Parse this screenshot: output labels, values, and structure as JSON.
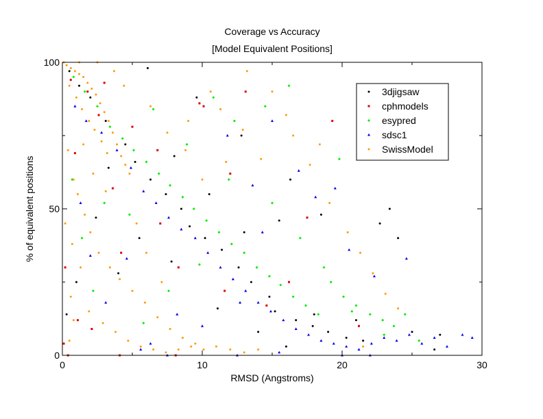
{
  "chart_data": {
    "type": "scatter",
    "title": "Coverage vs Accuracy",
    "subtitle": "[Model Equivalent Positions]",
    "xlabel": "RMSD (Angstroms)",
    "ylabel": "% of equivalent positions",
    "xlim": [
      0,
      30
    ],
    "ylim": [
      0,
      100
    ],
    "xticks": [
      0,
      10,
      20,
      30
    ],
    "yticks": [
      0,
      50,
      100
    ],
    "x_minor_step": 5,
    "y_minor_step": 25,
    "legend_position": "top-right",
    "series": [
      {
        "name": "3djigsaw",
        "color": "#000000",
        "marker": "circle",
        "points": [
          [
            0.5,
            97
          ],
          [
            1.2,
            92
          ],
          [
            2.0,
            88
          ],
          [
            3.1,
            80
          ],
          [
            4.5,
            72
          ],
          [
            5.2,
            66
          ],
          [
            6.3,
            60
          ],
          [
            7.4,
            55
          ],
          [
            8.5,
            50
          ],
          [
            9.1,
            44
          ],
          [
            10.2,
            40
          ],
          [
            11.4,
            36
          ],
          [
            12.6,
            30
          ],
          [
            13.5,
            25
          ],
          [
            14.8,
            20
          ],
          [
            15.2,
            15
          ],
          [
            16.7,
            12
          ],
          [
            17.9,
            10
          ],
          [
            19.0,
            8
          ],
          [
            20.3,
            6
          ],
          [
            21.5,
            5
          ],
          [
            22.7,
            45
          ],
          [
            23.4,
            50
          ],
          [
            24.0,
            40
          ],
          [
            18.5,
            48
          ],
          [
            16.3,
            60
          ],
          [
            12.8,
            75
          ],
          [
            9.6,
            88
          ],
          [
            6.1,
            98
          ],
          [
            3.3,
            64
          ],
          [
            2.4,
            47
          ],
          [
            1.0,
            25
          ],
          [
            0.3,
            14
          ],
          [
            4.0,
            28
          ],
          [
            7.8,
            32
          ],
          [
            11.1,
            16
          ],
          [
            14.0,
            8
          ],
          [
            16.0,
            3
          ],
          [
            18.0,
            14
          ],
          [
            21.0,
            12
          ],
          [
            25.0,
            8
          ],
          [
            26.6,
            2
          ],
          [
            27.0,
            7
          ],
          [
            10.5,
            55
          ],
          [
            8.0,
            68
          ],
          [
            5.5,
            40
          ],
          [
            13.0,
            42
          ],
          [
            15.5,
            46
          ]
        ]
      },
      {
        "name": "cphmodels",
        "color": "#dd0000",
        "marker": "square",
        "points": [
          [
            0.1,
            4
          ],
          [
            0.2,
            30
          ],
          [
            1.1,
            12
          ],
          [
            2.1,
            9
          ],
          [
            3.0,
            93
          ],
          [
            5.0,
            78
          ],
          [
            9.8,
            86
          ],
          [
            10.1,
            85
          ],
          [
            19.3,
            80
          ],
          [
            17.5,
            47
          ],
          [
            12.0,
            62
          ],
          [
            7.0,
            45
          ],
          [
            4.2,
            35
          ],
          [
            1.8,
            90
          ],
          [
            0.6,
            94
          ],
          [
            0.9,
            69
          ],
          [
            2.6,
            82
          ],
          [
            6.8,
            70
          ],
          [
            11.6,
            22
          ],
          [
            14.6,
            17
          ],
          [
            16.2,
            25
          ],
          [
            21.2,
            10
          ],
          [
            13.1,
            90
          ],
          [
            3.6,
            57
          ],
          [
            8.3,
            30
          ],
          [
            0.4,
            0
          ],
          [
            4.1,
            0
          ],
          [
            8.1,
            0
          ]
        ]
      },
      {
        "name": "esypred",
        "color": "#00ee00",
        "marker": "diamond",
        "points": [
          [
            0.8,
            95
          ],
          [
            1.6,
            90
          ],
          [
            2.5,
            85
          ],
          [
            3.4,
            78
          ],
          [
            4.3,
            74
          ],
          [
            5.1,
            70
          ],
          [
            6.0,
            66
          ],
          [
            6.9,
            62
          ],
          [
            7.7,
            58
          ],
          [
            8.6,
            54
          ],
          [
            9.4,
            50
          ],
          [
            10.3,
            46
          ],
          [
            11.2,
            42
          ],
          [
            12.1,
            38
          ],
          [
            13.0,
            35
          ],
          [
            13.9,
            30
          ],
          [
            14.8,
            27
          ],
          [
            15.6,
            24
          ],
          [
            16.5,
            20
          ],
          [
            17.4,
            17
          ],
          [
            18.3,
            14
          ],
          [
            19.2,
            25
          ],
          [
            20.1,
            20
          ],
          [
            21.0,
            17
          ],
          [
            22.0,
            14
          ],
          [
            22.9,
            12
          ],
          [
            23.7,
            10
          ],
          [
            24.5,
            14
          ],
          [
            19.8,
            67
          ],
          [
            16.2,
            92
          ],
          [
            14.5,
            85
          ],
          [
            12.3,
            80
          ],
          [
            10.8,
            88
          ],
          [
            3.0,
            52
          ],
          [
            2.2,
            22
          ],
          [
            5.8,
            11
          ],
          [
            7.6,
            22
          ],
          [
            9.8,
            31
          ],
          [
            11.9,
            60
          ],
          [
            8.9,
            72
          ],
          [
            6.5,
            84
          ],
          [
            4.8,
            48
          ],
          [
            1.4,
            40
          ],
          [
            15.0,
            52
          ],
          [
            17.0,
            40
          ],
          [
            18.7,
            30
          ],
          [
            20.7,
            15
          ],
          [
            23.0,
            7
          ],
          [
            25.5,
            5
          ],
          [
            0.7,
            60
          ]
        ]
      },
      {
        "name": "sdsc1",
        "color": "#0000ee",
        "marker": "triangle",
        "points": [
          [
            0.9,
            85
          ],
          [
            1.7,
            80
          ],
          [
            2.8,
            76
          ],
          [
            3.9,
            70
          ],
          [
            4.9,
            64
          ],
          [
            5.8,
            56
          ],
          [
            6.7,
            52
          ],
          [
            7.6,
            47
          ],
          [
            8.5,
            43
          ],
          [
            9.5,
            40
          ],
          [
            10.4,
            35
          ],
          [
            11.3,
            30
          ],
          [
            12.2,
            26
          ],
          [
            13.1,
            22
          ],
          [
            14.0,
            18
          ],
          [
            14.9,
            15
          ],
          [
            15.8,
            12
          ],
          [
            16.7,
            9
          ],
          [
            17.6,
            7
          ],
          [
            18.5,
            5
          ],
          [
            19.4,
            4
          ],
          [
            20.3,
            3
          ],
          [
            21.2,
            2
          ],
          [
            22.1,
            4
          ],
          [
            23.0,
            6
          ],
          [
            23.9,
            5
          ],
          [
            24.8,
            7
          ],
          [
            25.7,
            4
          ],
          [
            26.6,
            6
          ],
          [
            27.5,
            3
          ],
          [
            28.6,
            7
          ],
          [
            29.3,
            6
          ],
          [
            11.8,
            75
          ],
          [
            13.6,
            58
          ],
          [
            15.0,
            80
          ],
          [
            16.9,
            63
          ],
          [
            18.1,
            54
          ],
          [
            20.5,
            36
          ],
          [
            22.3,
            27
          ],
          [
            24.6,
            33
          ],
          [
            19.5,
            57
          ],
          [
            14.3,
            42
          ],
          [
            12.7,
            18
          ],
          [
            10.0,
            10
          ],
          [
            8.2,
            14
          ],
          [
            6.3,
            4
          ],
          [
            4.6,
            33
          ],
          [
            3.1,
            18
          ],
          [
            2.0,
            34
          ],
          [
            1.3,
            52
          ],
          [
            5.6,
            2
          ],
          [
            15.5,
            1
          ],
          [
            20.0,
            0
          ],
          [
            22.0,
            0
          ],
          [
            7.5,
            0
          ],
          [
            12.5,
            0
          ]
        ]
      },
      {
        "name": "SwissModel",
        "color": "#ff9900",
        "marker": "circle",
        "points": [
          [
            0.3,
            99
          ],
          [
            0.6,
            98
          ],
          [
            0.9,
            97
          ],
          [
            1.2,
            96
          ],
          [
            1.5,
            95
          ],
          [
            1.8,
            93
          ],
          [
            2.1,
            91
          ],
          [
            2.4,
            89
          ],
          [
            2.7,
            86
          ],
          [
            3.0,
            83
          ],
          [
            3.3,
            80
          ],
          [
            3.6,
            76
          ],
          [
            3.9,
            72
          ],
          [
            4.2,
            68
          ],
          [
            4.5,
            65
          ],
          [
            4.8,
            62
          ],
          [
            0.5,
            92
          ],
          [
            1.0,
            88
          ],
          [
            1.4,
            84
          ],
          [
            1.9,
            80
          ],
          [
            2.3,
            77
          ],
          [
            2.8,
            73
          ],
          [
            3.2,
            69
          ],
          [
            0.4,
            70
          ],
          [
            0.8,
            60
          ],
          [
            1.1,
            55
          ],
          [
            1.6,
            48
          ],
          [
            2.0,
            42
          ],
          [
            2.6,
            35
          ],
          [
            3.4,
            30
          ],
          [
            4.1,
            26
          ],
          [
            5.0,
            22
          ],
          [
            5.9,
            18
          ],
          [
            6.8,
            13
          ],
          [
            7.7,
            9
          ],
          [
            8.6,
            6
          ],
          [
            9.5,
            4
          ],
          [
            0.2,
            45
          ],
          [
            0.7,
            38
          ],
          [
            1.3,
            30
          ],
          [
            0.6,
            20
          ],
          [
            1.9,
            15
          ],
          [
            2.9,
            11
          ],
          [
            3.8,
            8
          ],
          [
            4.7,
            5
          ],
          [
            5.6,
            3
          ],
          [
            6.5,
            2
          ],
          [
            7.4,
            1
          ],
          [
            8.3,
            2
          ],
          [
            9.2,
            3
          ],
          [
            10.1,
            2
          ],
          [
            11.0,
            3
          ],
          [
            12.0,
            2
          ],
          [
            13.0,
            1
          ],
          [
            14.0,
            2
          ],
          [
            6.3,
            85
          ],
          [
            7.5,
            76
          ],
          [
            8.8,
            70
          ],
          [
            10.0,
            60
          ],
          [
            11.7,
            66
          ],
          [
            12.9,
            77
          ],
          [
            14.2,
            67
          ],
          [
            13.2,
            97
          ],
          [
            15.0,
            90
          ],
          [
            16.5,
            75
          ],
          [
            17.7,
            65
          ],
          [
            19.1,
            52
          ],
          [
            20.4,
            42
          ],
          [
            21.3,
            35
          ],
          [
            22.2,
            28
          ],
          [
            23.1,
            21
          ],
          [
            24.0,
            16
          ],
          [
            16.0,
            82
          ],
          [
            18.4,
            72
          ],
          [
            3.1,
            56
          ],
          [
            5.3,
            45
          ],
          [
            6.0,
            35
          ],
          [
            7.1,
            25
          ],
          [
            1.5,
            72
          ],
          [
            2.2,
            62
          ],
          [
            0.8,
            12
          ],
          [
            0.5,
            5
          ],
          [
            9.0,
            80
          ],
          [
            10.6,
            90
          ],
          [
            11.3,
            84
          ],
          [
            4.4,
            92
          ],
          [
            2.5,
            100
          ],
          [
            1.2,
            100
          ],
          [
            0.1,
            100
          ],
          [
            3.7,
            97
          ],
          [
            21.5,
            3
          ]
        ]
      }
    ]
  }
}
